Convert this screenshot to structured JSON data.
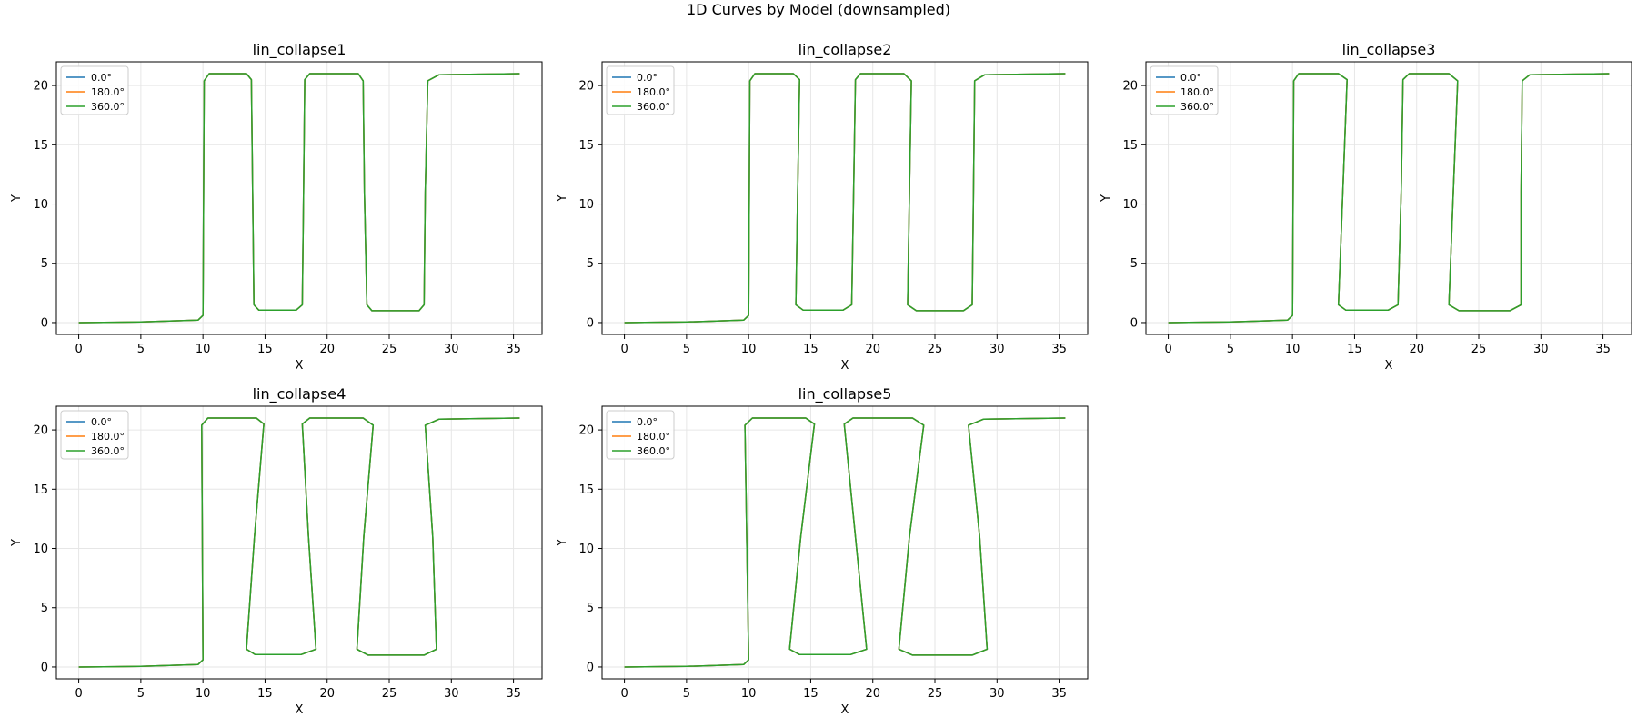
{
  "figure": {
    "suptitle": "1D Curves by Model (downsampled)"
  },
  "chart_data": [
    {
      "type": "line",
      "title": "lin_collapse1",
      "xlabel": "X",
      "ylabel": "Y",
      "xlim": [
        -1.8,
        37.3
      ],
      "ylim": [
        -1.0,
        22.0
      ],
      "xticks": [
        0,
        5,
        10,
        15,
        20,
        25,
        30,
        35
      ],
      "yticks": [
        0,
        5,
        10,
        15,
        20
      ],
      "grid": true,
      "legend": "top-left",
      "series": [
        {
          "name": "0.0°",
          "color": "#1f77b4"
        },
        {
          "name": "180.0°",
          "color": "#ff7f0e"
        },
        {
          "name": "360.0°",
          "color": "#2ca02c"
        }
      ],
      "x": [
        0,
        5,
        9.6,
        10,
        10.1,
        10.5,
        13.5,
        13.9,
        14.0,
        14.1,
        14.5,
        17.5,
        18.0,
        18.1,
        18.2,
        18.6,
        22.5,
        22.9,
        23.0,
        23.2,
        23.6,
        27.4,
        27.8,
        27.9,
        28.1,
        29.0,
        35.5
      ],
      "y": [
        0,
        0.05,
        0.2,
        0.6,
        20.4,
        21.0,
        21.0,
        20.5,
        11,
        1.5,
        1.05,
        1.05,
        1.5,
        11,
        20.5,
        21.0,
        21.0,
        20.4,
        11,
        1.5,
        1.0,
        1.0,
        1.5,
        11,
        20.4,
        20.9,
        21.0
      ]
    },
    {
      "type": "line",
      "title": "lin_collapse2",
      "xlabel": "X",
      "ylabel": "Y",
      "xlim": [
        -1.8,
        37.3
      ],
      "ylim": [
        -1.0,
        22.0
      ],
      "xticks": [
        0,
        5,
        10,
        15,
        20,
        25,
        30,
        35
      ],
      "yticks": [
        0,
        5,
        10,
        15,
        20
      ],
      "grid": true,
      "legend": "top-left",
      "series": [
        {
          "name": "0.0°",
          "color": "#1f77b4"
        },
        {
          "name": "180.0°",
          "color": "#ff7f0e"
        },
        {
          "name": "360.0°",
          "color": "#2ca02c"
        }
      ],
      "x": [
        0,
        5,
        9.6,
        10,
        10.1,
        10.5,
        13.6,
        14.1,
        13.95,
        13.8,
        14.4,
        17.6,
        18.3,
        18.45,
        18.6,
        19.0,
        22.5,
        23.1,
        22.95,
        22.8,
        23.5,
        27.3,
        28.0,
        28.1,
        28.2,
        29.0,
        35.5
      ],
      "y": [
        0,
        0.05,
        0.2,
        0.6,
        20.4,
        21.0,
        21.0,
        20.5,
        11,
        1.5,
        1.05,
        1.05,
        1.5,
        11,
        20.5,
        21.0,
        21.0,
        20.4,
        11,
        1.5,
        1.0,
        1.0,
        1.5,
        11,
        20.4,
        20.9,
        21.0
      ]
    },
    {
      "type": "line",
      "title": "lin_collapse3",
      "xlabel": "X",
      "ylabel": "Y",
      "xlim": [
        -1.8,
        37.3
      ],
      "ylim": [
        -1.0,
        22.0
      ],
      "xticks": [
        0,
        5,
        10,
        15,
        20,
        25,
        30,
        35
      ],
      "yticks": [
        0,
        5,
        10,
        15,
        20
      ],
      "grid": true,
      "legend": "top-left",
      "series": [
        {
          "name": "0.0°",
          "color": "#1f77b4"
        },
        {
          "name": "180.0°",
          "color": "#ff7f0e"
        },
        {
          "name": "360.0°",
          "color": "#2ca02c"
        }
      ],
      "x": [
        0,
        5,
        9.6,
        10,
        10.1,
        10.5,
        13.7,
        14.4,
        14.05,
        13.7,
        14.3,
        17.7,
        18.5,
        18.75,
        18.9,
        19.4,
        22.6,
        23.3,
        22.95,
        22.6,
        23.4,
        27.5,
        28.4,
        28.4,
        28.5,
        29.1,
        35.5
      ],
      "y": [
        0,
        0.05,
        0.2,
        0.6,
        20.4,
        21.0,
        21.0,
        20.5,
        11,
        1.5,
        1.05,
        1.05,
        1.5,
        11,
        20.5,
        21.0,
        21.0,
        20.4,
        11,
        1.5,
        1.0,
        1.0,
        1.5,
        11,
        20.4,
        20.9,
        21.0
      ]
    },
    {
      "type": "line",
      "title": "lin_collapse4",
      "xlabel": "X",
      "ylabel": "Y",
      "xlim": [
        -1.8,
        37.3
      ],
      "ylim": [
        -1.0,
        22.0
      ],
      "xticks": [
        0,
        5,
        10,
        15,
        20,
        25,
        30,
        35
      ],
      "yticks": [
        0,
        5,
        10,
        15,
        20
      ],
      "grid": true,
      "legend": "top-left",
      "series": [
        {
          "name": "0.0°",
          "color": "#1f77b4"
        },
        {
          "name": "180.0°",
          "color": "#ff7f0e"
        },
        {
          "name": "360.0°",
          "color": "#2ca02c"
        }
      ],
      "x": [
        0,
        5,
        9.6,
        10,
        9.9,
        10.4,
        14.3,
        14.9,
        14.15,
        13.5,
        14.2,
        17.9,
        19.1,
        18.5,
        18.0,
        18.6,
        22.9,
        23.7,
        22.95,
        22.4,
        23.3,
        27.8,
        28.8,
        28.5,
        27.9,
        29.0,
        35.5
      ],
      "y": [
        0,
        0.05,
        0.2,
        0.6,
        20.4,
        21.0,
        21.0,
        20.5,
        11,
        1.5,
        1.05,
        1.05,
        1.5,
        11,
        20.5,
        21.0,
        21.0,
        20.4,
        11,
        1.5,
        1.0,
        1.0,
        1.5,
        11,
        20.4,
        20.9,
        21.0
      ]
    },
    {
      "type": "line",
      "title": "lin_collapse5",
      "xlabel": "X",
      "ylabel": "Y",
      "xlim": [
        -1.8,
        37.3
      ],
      "ylim": [
        -1.0,
        22.0
      ],
      "xticks": [
        0,
        5,
        10,
        15,
        20,
        25,
        30,
        35
      ],
      "yticks": [
        0,
        5,
        10,
        15,
        20
      ],
      "grid": true,
      "legend": "top-left",
      "series": [
        {
          "name": "0.0°",
          "color": "#1f77b4"
        },
        {
          "name": "180.0°",
          "color": "#ff7f0e"
        },
        {
          "name": "360.0°",
          "color": "#2ca02c"
        }
      ],
      "x": [
        0,
        5,
        9.6,
        10,
        9.7,
        10.3,
        14.6,
        15.3,
        14.2,
        13.3,
        14.1,
        18.2,
        19.5,
        18.6,
        17.7,
        18.4,
        23.2,
        24.1,
        22.95,
        22.1,
        23.2,
        28.0,
        29.2,
        28.6,
        27.7,
        28.9,
        35.5
      ],
      "y": [
        0,
        0.05,
        0.2,
        0.6,
        20.4,
        21.0,
        21.0,
        20.5,
        11,
        1.5,
        1.05,
        1.05,
        1.5,
        11,
        20.5,
        21.0,
        21.0,
        20.4,
        11,
        1.5,
        1.0,
        1.0,
        1.5,
        11,
        20.4,
        20.9,
        21.0
      ]
    }
  ]
}
